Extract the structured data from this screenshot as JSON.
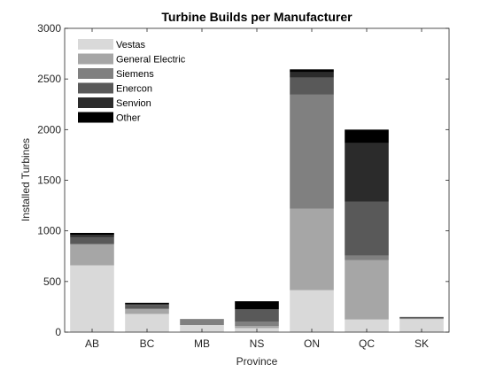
{
  "chart_data": {
    "type": "bar",
    "stacked": true,
    "title": "Turbine Builds per Manufacturer",
    "xlabel": "Province",
    "ylabel": "Installed Turbines",
    "ylim": [
      0,
      3000
    ],
    "yticks": [
      0,
      500,
      1000,
      1500,
      2000,
      2500,
      3000
    ],
    "grid": false,
    "legend_position": "top-left",
    "categories": [
      "AB",
      "BC",
      "MB",
      "NS",
      "ON",
      "QC",
      "SK"
    ],
    "series": [
      {
        "name": "Vestas",
        "color": "#d9d9d9",
        "values": [
          660,
          180,
          70,
          40,
          415,
          125,
          130
        ]
      },
      {
        "name": "General Electric",
        "color": "#a6a6a6",
        "values": [
          210,
          50,
          0,
          20,
          805,
          585,
          0
        ]
      },
      {
        "name": "Siemens",
        "color": "#808080",
        "values": [
          0,
          0,
          60,
          45,
          1125,
          45,
          10
        ]
      },
      {
        "name": "Enercon",
        "color": "#595959",
        "values": [
          70,
          40,
          0,
          120,
          170,
          535,
          10
        ]
      },
      {
        "name": "Senvion",
        "color": "#2b2b2b",
        "values": [
          20,
          10,
          0,
          0,
          50,
          575,
          0
        ]
      },
      {
        "name": "Other",
        "color": "#000000",
        "values": [
          20,
          10,
          0,
          80,
          30,
          135,
          0
        ]
      }
    ]
  }
}
